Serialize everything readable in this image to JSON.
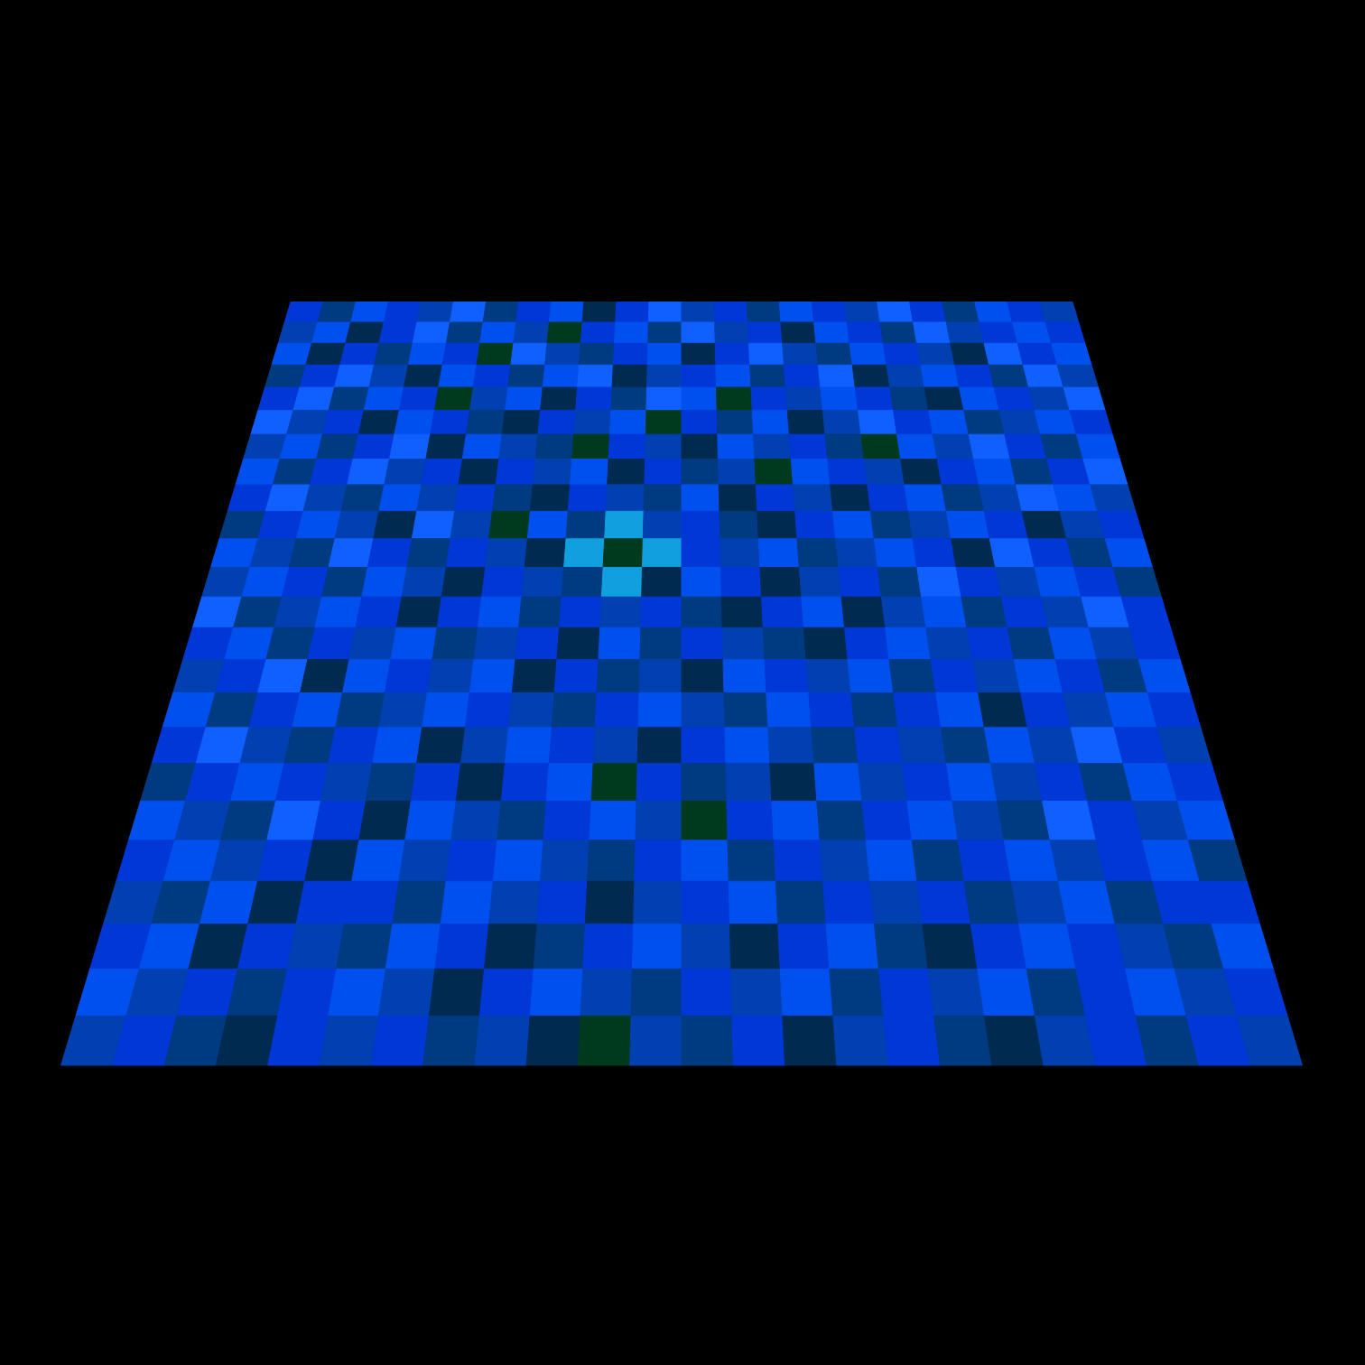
{
  "chart_data": {
    "type": "heatmap",
    "tick_labels": false,
    "zlim": [
      0,
      9
    ],
    "cells": [
      [
        6,
        4,
        7,
        6,
        5,
        8,
        4,
        6,
        7,
        3,
        6,
        8,
        5,
        6,
        4,
        7,
        6,
        5,
        8,
        6,
        4,
        7,
        6,
        5
      ],
      [
        5,
        7,
        3,
        6,
        8,
        4,
        7,
        5,
        2,
        6,
        7,
        4,
        8,
        5,
        6,
        3,
        7,
        6,
        4,
        8,
        5,
        6,
        7,
        6
      ],
      [
        7,
        3,
        6,
        4,
        7,
        6,
        2,
        8,
        5,
        4,
        6,
        7,
        3,
        6,
        8,
        5,
        4,
        7,
        6,
        5,
        3,
        8,
        6,
        7
      ],
      [
        4,
        6,
        8,
        5,
        3,
        7,
        6,
        4,
        7,
        8,
        3,
        5,
        6,
        7,
        4,
        6,
        8,
        3,
        5,
        7,
        6,
        4,
        8,
        5
      ],
      [
        6,
        8,
        4,
        7,
        6,
        2,
        5,
        7,
        3,
        6,
        4,
        8,
        7,
        2,
        6,
        5,
        7,
        6,
        4,
        3,
        7,
        6,
        5,
        8
      ],
      [
        8,
        5,
        6,
        3,
        7,
        6,
        4,
        3,
        6,
        5,
        7,
        2,
        6,
        4,
        7,
        3,
        5,
        8,
        6,
        7,
        4,
        5,
        7,
        6
      ],
      [
        5,
        7,
        4,
        6,
        8,
        3,
        7,
        5,
        4,
        2,
        6,
        5,
        3,
        7,
        5,
        6,
        4,
        2,
        7,
        5,
        8,
        6,
        4,
        7
      ],
      [
        7,
        4,
        6,
        8,
        5,
        6,
        3,
        6,
        5,
        7,
        3,
        6,
        4,
        5,
        2,
        7,
        6,
        5,
        3,
        6,
        7,
        4,
        6,
        8
      ],
      [
        6,
        8,
        5,
        4,
        7,
        5,
        6,
        4,
        3,
        6,
        5,
        4,
        7,
        3,
        6,
        5,
        3,
        6,
        7,
        4,
        5,
        8,
        7,
        5
      ],
      [
        4,
        6,
        7,
        5,
        3,
        8,
        5,
        2,
        7,
        4,
        9,
        5,
        6,
        4,
        3,
        6,
        7,
        4,
        5,
        7,
        6,
        3,
        5,
        6
      ],
      [
        7,
        5,
        4,
        8,
        6,
        4,
        6,
        5,
        3,
        9,
        2,
        9,
        6,
        5,
        7,
        4,
        5,
        7,
        6,
        3,
        8,
        6,
        4,
        7
      ],
      [
        5,
        7,
        6,
        4,
        7,
        5,
        3,
        6,
        5,
        4,
        9,
        3,
        7,
        6,
        3,
        5,
        6,
        4,
        8,
        6,
        5,
        7,
        6,
        4
      ],
      [
        8,
        4,
        5,
        7,
        6,
        3,
        6,
        7,
        4,
        6,
        5,
        6,
        4,
        3,
        6,
        7,
        3,
        5,
        7,
        4,
        6,
        5,
        8,
        6
      ],
      [
        6,
        7,
        4,
        6,
        5,
        7,
        4,
        5,
        6,
        3,
        7,
        4,
        6,
        5,
        4,
        3,
        6,
        7,
        5,
        6,
        4,
        7,
        5,
        6
      ],
      [
        5,
        6,
        8,
        3,
        7,
        6,
        5,
        7,
        3,
        6,
        4,
        5,
        3,
        7,
        6,
        5,
        7,
        4,
        6,
        5,
        7,
        6,
        4,
        7
      ],
      [
        7,
        4,
        6,
        7,
        4,
        5,
        7,
        6,
        5,
        4,
        6,
        7,
        5,
        4,
        7,
        6,
        4,
        6,
        7,
        3,
        6,
        5,
        7,
        6
      ],
      [
        6,
        8,
        5,
        4,
        6,
        7,
        3,
        5,
        7,
        6,
        5,
        3,
        6,
        7,
        5,
        4,
        6,
        5,
        4,
        7,
        5,
        8,
        6,
        5
      ],
      [
        4,
        6,
        7,
        6,
        5,
        4,
        6,
        3,
        6,
        7,
        2,
        6,
        4,
        5,
        3,
        7,
        5,
        6,
        7,
        5,
        6,
        4,
        7,
        6
      ],
      [
        7,
        5,
        4,
        8,
        6,
        3,
        7,
        5,
        4,
        6,
        7,
        5,
        2,
        6,
        7,
        4,
        6,
        7,
        5,
        4,
        8,
        6,
        5,
        7
      ],
      [
        6,
        7,
        5,
        6,
        3,
        7,
        5,
        6,
        7,
        5,
        4,
        6,
        7,
        4,
        6,
        5,
        7,
        4,
        6,
        7,
        5,
        6,
        7,
        4
      ],
      [
        5,
        4,
        7,
        3,
        6,
        6,
        4,
        7,
        5,
        6,
        3,
        5,
        6,
        7,
        4,
        6,
        5,
        6,
        4,
        5,
        7,
        4,
        6,
        6
      ],
      [
        6,
        7,
        3,
        6,
        5,
        4,
        7,
        6,
        3,
        4,
        6,
        7,
        5,
        3,
        6,
        7,
        4,
        3,
        6,
        7,
        6,
        5,
        4,
        7
      ],
      [
        7,
        5,
        6,
        4,
        6,
        7,
        5,
        3,
        6,
        7,
        5,
        4,
        6,
        5,
        7,
        4,
        6,
        5,
        7,
        4,
        6,
        7,
        5,
        6
      ],
      [
        5,
        6,
        4,
        3,
        6,
        5,
        6,
        4,
        5,
        3,
        2,
        5,
        4,
        6,
        3,
        5,
        6,
        4,
        3,
        5,
        6,
        4,
        6,
        5
      ]
    ]
  }
}
